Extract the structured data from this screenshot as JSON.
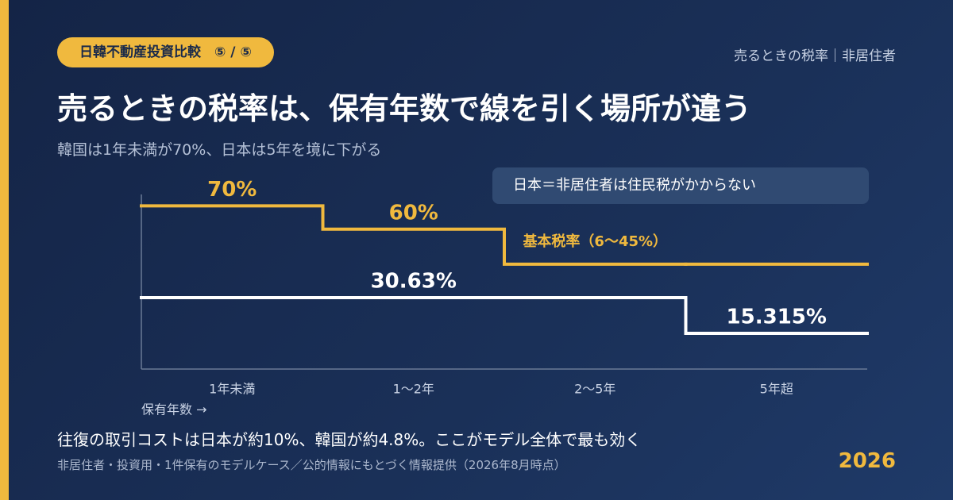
{
  "badge": "日韓不動産投資比較　⑤ / ⑤",
  "header_right": "売るときの税率｜非居住者",
  "note_box": "日本＝非居住者は住民税がかからない",
  "footer": {
    "headline": "往復の取引コストは日本が約10%、韓国が約4.8%。ここがモデル全体で最も効く",
    "source": "非居住者・投資用・1件保有のモデルケース／公的情報にもとづく情報提供（2026年8月時点）",
    "year": "2026"
  },
  "chart_data": {
    "type": "step",
    "title": "売るときの税率は、保有年数で線を引く場所が違う",
    "subtitle": "韓国は1年未満が70%、日本は5年を境に下がる",
    "x_label": "保有年数 →",
    "categories": [
      "1年未満",
      "1〜2年",
      "2〜5年",
      "5年超"
    ],
    "series": [
      {
        "color": "#f0b93e",
        "values": [
          70,
          60,
          45,
          45
        ],
        "value_labels": [
          "70%",
          "60%",
          "基本税率（6〜45%）",
          null
        ]
      },
      {
        "color": "#ffffff",
        "values": [
          30.63,
          30.63,
          30.63,
          15.315
        ],
        "value_labels": [
          null,
          "30.63%",
          null,
          "15.315%"
        ]
      }
    ],
    "ylim": [
      0,
      80
    ]
  }
}
